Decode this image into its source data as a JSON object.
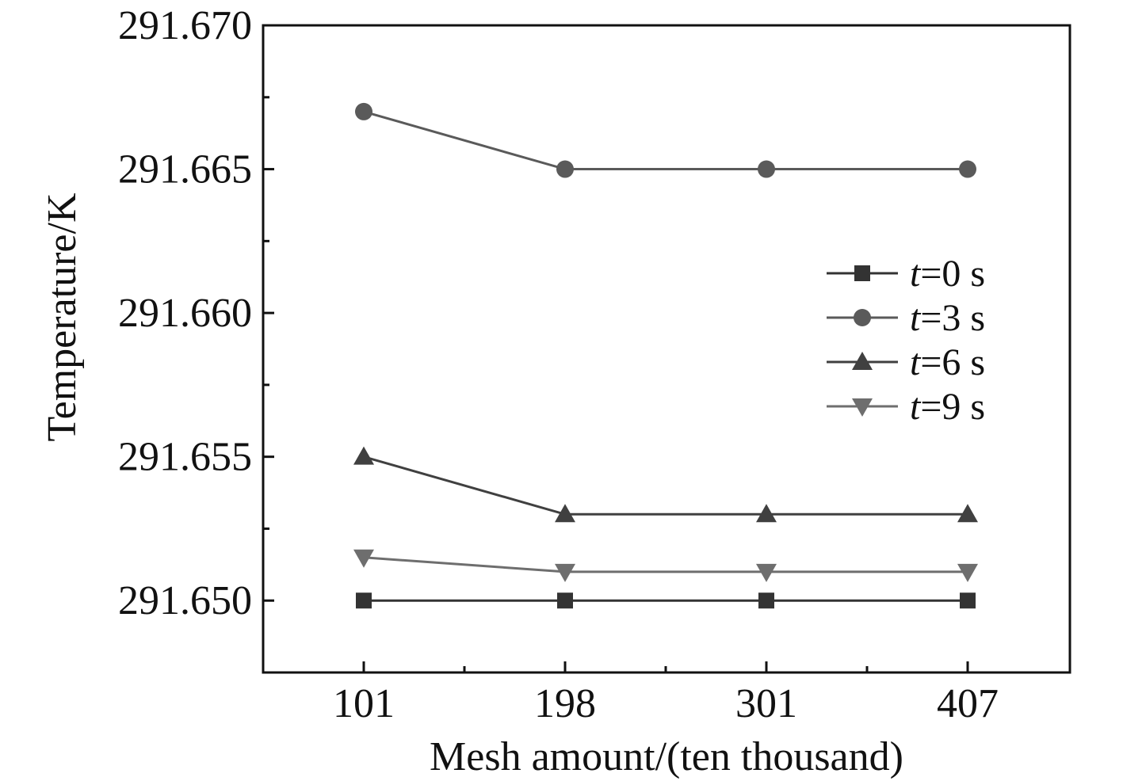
{
  "chart_data": {
    "type": "line",
    "xlabel": "Mesh amount/(ten thousand)",
    "ylabel": "Temperature/K",
    "categories": [
      "101",
      "198",
      "301",
      "407"
    ],
    "ylim": [
      291.6475,
      291.67
    ],
    "yticks": [
      "291.650",
      "291.655",
      "291.660",
      "291.665",
      "291.670"
    ],
    "grid": false,
    "legend_position": "right",
    "series": [
      {
        "var": "t",
        "name": "=0 s",
        "marker": "square",
        "color": "#333333",
        "values": [
          291.65,
          291.65,
          291.65,
          291.65
        ]
      },
      {
        "var": "t",
        "name": "=3 s",
        "marker": "circle",
        "color": "#5a5a5a",
        "values": [
          291.667,
          291.665,
          291.665,
          291.665
        ]
      },
      {
        "var": "t",
        "name": "=6 s",
        "marker": "triangle-up",
        "color": "#404040",
        "values": [
          291.655,
          291.653,
          291.653,
          291.653
        ]
      },
      {
        "var": "t",
        "name": "=9 s",
        "marker": "triangle-down",
        "color": "#6e6e6e",
        "values": [
          291.6515,
          291.651,
          291.651,
          291.651
        ]
      }
    ]
  }
}
